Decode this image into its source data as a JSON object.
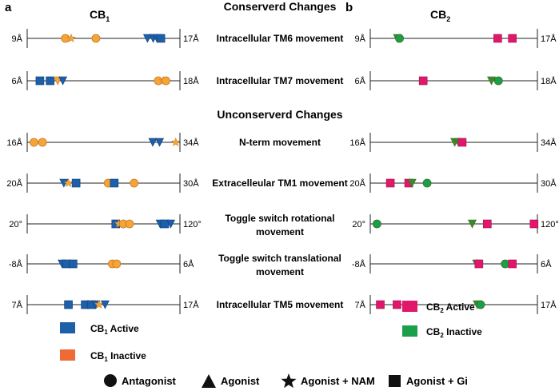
{
  "panels": {
    "a": {
      "letter": "a",
      "title": "CB",
      "title_sub": "1"
    },
    "b": {
      "letter": "b",
      "title": "CB",
      "title_sub": "2"
    }
  },
  "sections": {
    "conserved": "Conserverd Changes",
    "unconserved": "Unconserverd Changes"
  },
  "colors": {
    "cb1_active": "#1d5fa8",
    "cb1_inactive": "#f5a43a",
    "cb1_inactive_legend": "#ef6a35",
    "cb2_active": "#e0176a",
    "cb2_inactive": "#1aa04a",
    "marker_outline": "#3a6e1f",
    "agonist_fill": "#3b8a2a",
    "line": "#222222"
  },
  "legend": {
    "cb1_active": {
      "text": "CB",
      "sub": "1",
      "tail": " Active"
    },
    "cb1_inactive": {
      "text": "CB",
      "sub": "1",
      "tail": " Inactive"
    },
    "cb2_active": {
      "text": "CB",
      "sub": "2",
      "tail": " Active"
    },
    "cb2_inactive": {
      "text": "CB",
      "sub": "2",
      "tail": " Inactive"
    },
    "shapes": [
      {
        "shape": "circle",
        "label": "Antagonist"
      },
      {
        "shape": "triangle",
        "label": "Agonist"
      },
      {
        "shape": "star",
        "label": "Agonist + NAM"
      },
      {
        "shape": "square",
        "label": "Agonist + Gi"
      }
    ]
  },
  "chart_data": {
    "type": "scatter",
    "rows": [
      {
        "label": "Intracellular TM6 movement",
        "cb1": {
          "min": 9,
          "max": 17,
          "min_label": "9Å",
          "max_label": "17Å",
          "points": [
            {
              "x": 11.0,
              "shape": "circle",
              "state": "inactive"
            },
            {
              "x": 11.3,
              "shape": "star",
              "state": "inactive"
            },
            {
              "x": 12.6,
              "shape": "circle",
              "state": "inactive"
            },
            {
              "x": 15.3,
              "shape": "triangle",
              "state": "active"
            },
            {
              "x": 15.6,
              "shape": "triangle",
              "state": "active"
            },
            {
              "x": 15.8,
              "shape": "triangle",
              "state": "active"
            },
            {
              "x": 16.0,
              "shape": "square",
              "state": "active"
            }
          ]
        },
        "cb2": {
          "min": 9,
          "max": 17,
          "min_label": "9Å",
          "max_label": "17Å",
          "points": [
            {
              "x": 10.3,
              "shape": "triangle",
              "state": "inactive"
            },
            {
              "x": 10.4,
              "shape": "circle",
              "state": "inactive"
            },
            {
              "x": 15.1,
              "shape": "square",
              "state": "active"
            },
            {
              "x": 15.8,
              "shape": "square",
              "state": "active"
            }
          ]
        }
      },
      {
        "label": "Intracellular TM7 movement",
        "cb1": {
          "min": 6,
          "max": 18,
          "min_label": "6Å",
          "max_label": "18Å",
          "points": [
            {
              "x": 7.0,
              "shape": "square",
              "state": "active"
            },
            {
              "x": 7.8,
              "shape": "square",
              "state": "active"
            },
            {
              "x": 8.4,
              "shape": "triangle",
              "state": "inactive"
            },
            {
              "x": 8.8,
              "shape": "triangle",
              "state": "active"
            },
            {
              "x": 16.3,
              "shape": "circle",
              "state": "inactive"
            },
            {
              "x": 16.7,
              "shape": "star",
              "state": "inactive"
            },
            {
              "x": 16.9,
              "shape": "circle",
              "state": "inactive"
            }
          ]
        },
        "cb2": {
          "min": 6,
          "max": 18,
          "min_label": "6Å",
          "max_label": "18Å",
          "points": [
            {
              "x": 9.8,
              "shape": "square",
              "state": "active"
            },
            {
              "x": 14.7,
              "shape": "triangle",
              "state": "inactive"
            },
            {
              "x": 15.2,
              "shape": "circle",
              "state": "inactive"
            }
          ]
        }
      },
      {
        "label": "N-term movement",
        "cb1": {
          "min": 16,
          "max": 34,
          "min_label": "16Å",
          "max_label": "34Å",
          "points": [
            {
              "x": 16.8,
              "shape": "circle",
              "state": "inactive"
            },
            {
              "x": 17.8,
              "shape": "circle",
              "state": "inactive"
            },
            {
              "x": 30.8,
              "shape": "triangle",
              "state": "active"
            },
            {
              "x": 31.6,
              "shape": "triangle",
              "state": "active"
            },
            {
              "x": 33.5,
              "shape": "star",
              "state": "inactive"
            }
          ]
        },
        "cb2": {
          "min": 16,
          "max": 34,
          "min_label": "16Å",
          "max_label": "34Å",
          "points": [
            {
              "x": 25.1,
              "shape": "triangle",
              "state": "inactive"
            },
            {
              "x": 25.5,
              "shape": "triangle",
              "state": "inactive"
            },
            {
              "x": 25.9,
              "shape": "square",
              "state": "active"
            }
          ]
        }
      },
      {
        "label": "Extracelleular TM1 movement",
        "cb1": {
          "min": 20,
          "max": 30,
          "min_label": "20Å",
          "max_label": "30Å",
          "points": [
            {
              "x": 22.4,
              "shape": "triangle",
              "state": "active"
            },
            {
              "x": 22.7,
              "shape": "star",
              "state": "inactive"
            },
            {
              "x": 23.2,
              "shape": "square",
              "state": "active"
            },
            {
              "x": 25.3,
              "shape": "circle",
              "state": "inactive"
            },
            {
              "x": 25.7,
              "shape": "square",
              "state": "active"
            },
            {
              "x": 27.0,
              "shape": "circle",
              "state": "inactive"
            }
          ]
        },
        "cb2": {
          "min": 20,
          "max": 30,
          "min_label": "20Å",
          "max_label": "30Å",
          "points": [
            {
              "x": 21.2,
              "shape": "square",
              "state": "active"
            },
            {
              "x": 22.3,
              "shape": "square",
              "state": "active"
            },
            {
              "x": 22.5,
              "shape": "triangle",
              "state": "inactive"
            },
            {
              "x": 23.4,
              "shape": "circle",
              "state": "inactive"
            }
          ]
        }
      },
      {
        "label": "Toggle switch rotational movement",
        "label_lines": [
          "Toggle switch rotational",
          "movement"
        ],
        "cb1": {
          "min": 20,
          "max": 120,
          "min_label": "20°",
          "max_label": "120°",
          "points": [
            {
              "x": 78,
              "shape": "square",
              "state": "active"
            },
            {
              "x": 80,
              "shape": "star",
              "state": "inactive"
            },
            {
              "x": 83,
              "shape": "circle",
              "state": "inactive"
            },
            {
              "x": 87,
              "shape": "circle",
              "state": "inactive"
            },
            {
              "x": 107,
              "shape": "triangle",
              "state": "active"
            },
            {
              "x": 110,
              "shape": "square",
              "state": "active"
            },
            {
              "x": 114,
              "shape": "triangle",
              "state": "active"
            }
          ]
        },
        "cb2": {
          "min": 20,
          "max": 120,
          "min_label": "20°",
          "max_label": "120°",
          "points": [
            {
              "x": 24,
              "shape": "circle",
              "state": "inactive"
            },
            {
              "x": 81,
              "shape": "triangle",
              "state": "inactive"
            },
            {
              "x": 90,
              "shape": "square",
              "state": "active"
            },
            {
              "x": 118,
              "shape": "square",
              "state": "active"
            }
          ]
        }
      },
      {
        "label": "Toggle switch translational movement",
        "label_lines": [
          "Toggle switch translational",
          "movement"
        ],
        "cb1": {
          "min": -8,
          "max": 6,
          "min_label": "-8Å",
          "max_label": "6Å",
          "points": [
            {
              "x": -4.8,
              "shape": "triangle",
              "state": "active"
            },
            {
              "x": -4.4,
              "shape": "square",
              "state": "active"
            },
            {
              "x": -3.8,
              "shape": "square",
              "state": "active"
            },
            {
              "x": -0.2,
              "shape": "circle",
              "state": "inactive"
            },
            {
              "x": 0.2,
              "shape": "circle",
              "state": "inactive"
            }
          ]
        },
        "cb2": {
          "min": -8,
          "max": 6,
          "min_label": "-8Å",
          "max_label": "6Å",
          "points": [
            {
              "x": 0.9,
              "shape": "triangle",
              "state": "inactive"
            },
            {
              "x": 1.1,
              "shape": "square",
              "state": "active"
            },
            {
              "x": 3.3,
              "shape": "circle",
              "state": "inactive"
            },
            {
              "x": 3.9,
              "shape": "square",
              "state": "active"
            }
          ]
        }
      },
      {
        "label": "Intracellular TM5 movement",
        "cb1": {
          "min": 7,
          "max": 17,
          "min_label": "7Å",
          "max_label": "17Å",
          "points": [
            {
              "x": 9.7,
              "shape": "square",
              "state": "active"
            },
            {
              "x": 10.8,
              "shape": "square",
              "state": "active"
            },
            {
              "x": 11.2,
              "shape": "square",
              "state": "active"
            },
            {
              "x": 11.5,
              "shape": "triangle",
              "state": "active"
            },
            {
              "x": 11.7,
              "shape": "star",
              "state": "inactive"
            },
            {
              "x": 12.1,
              "shape": "triangle",
              "state": "active"
            }
          ]
        },
        "cb2": {
          "min": 7,
          "max": 17,
          "min_label": "7Å",
          "max_label": "17Å",
          "points": [
            {
              "x": 7.6,
              "shape": "square",
              "state": "active"
            },
            {
              "x": 8.6,
              "shape": "square",
              "state": "active"
            },
            {
              "x": 13.4,
              "shape": "triangle",
              "state": "inactive"
            },
            {
              "x": 13.6,
              "shape": "circle",
              "state": "inactive"
            }
          ]
        }
      }
    ]
  }
}
